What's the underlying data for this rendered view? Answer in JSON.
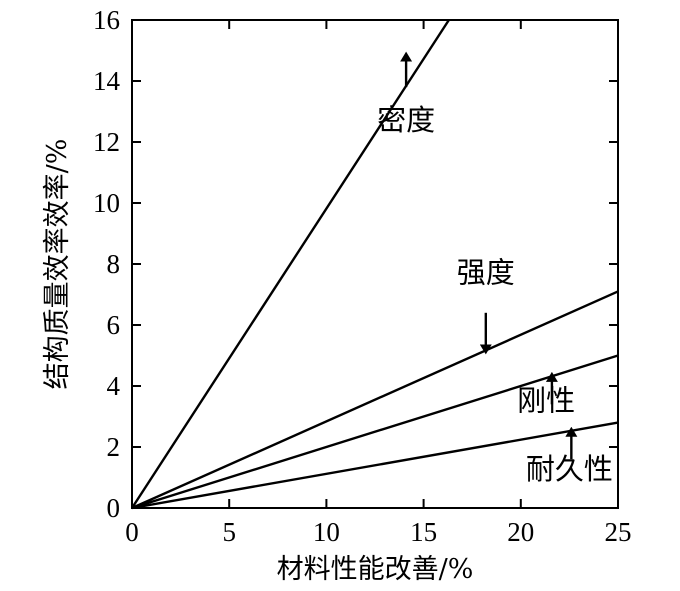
{
  "chart_data": {
    "type": "line",
    "xlabel": "材料性能改善/%",
    "ylabel": "结构质量效率效率/%",
    "xlim": [
      0,
      25
    ],
    "ylim": [
      0,
      16
    ],
    "x_ticks": [
      "0",
      "5",
      "10",
      "15",
      "20",
      "25"
    ],
    "y_ticks": [
      "0",
      "2",
      "4",
      "6",
      "8",
      "10",
      "12",
      "14",
      "16"
    ],
    "grid": false,
    "series": [
      {
        "name": "密度",
        "x": [
          0,
          16.3
        ],
        "y": [
          0,
          16
        ]
      },
      {
        "name": "强度",
        "x": [
          0,
          25
        ],
        "y": [
          0,
          7.1
        ]
      },
      {
        "name": "刚性",
        "x": [
          0,
          25
        ],
        "y": [
          0,
          5.0
        ]
      },
      {
        "name": "耐久性",
        "x": [
          0,
          25
        ],
        "y": [
          0,
          2.8
        ]
      }
    ],
    "annotations": [
      {
        "text": "密度",
        "series": "密度",
        "x": 14.1,
        "y": 12.4,
        "arrow_from": [
          14.1,
          13.8
        ],
        "arrow_to": [
          14.1,
          14.8
        ],
        "arrow_dir": "up"
      },
      {
        "text": "强度",
        "series": "强度",
        "x": 18.2,
        "y": 7.4,
        "arrow_from": [
          18.2,
          6.4
        ],
        "arrow_to": [
          18.2,
          5.2
        ],
        "arrow_dir": "down"
      },
      {
        "text": "刚性",
        "series": "刚性",
        "x": 21.3,
        "y": 3.2,
        "arrow_from": [
          21.6,
          3.4
        ],
        "arrow_to": [
          21.6,
          4.3
        ],
        "arrow_dir": "up"
      },
      {
        "text": "耐久性",
        "series": "耐久性",
        "x": 22.5,
        "y": 0.95,
        "arrow_from": [
          22.6,
          1.6
        ],
        "arrow_to": [
          22.6,
          2.5
        ],
        "arrow_dir": "up"
      }
    ]
  }
}
